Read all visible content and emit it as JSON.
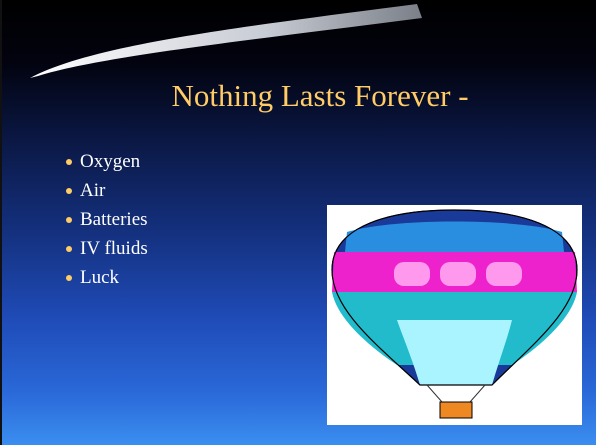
{
  "slide": {
    "title": "Nothing Lasts Forever -",
    "bullets": [
      "Oxygen",
      "Air",
      "Batteries",
      "IV fluids",
      "Luck"
    ]
  }
}
